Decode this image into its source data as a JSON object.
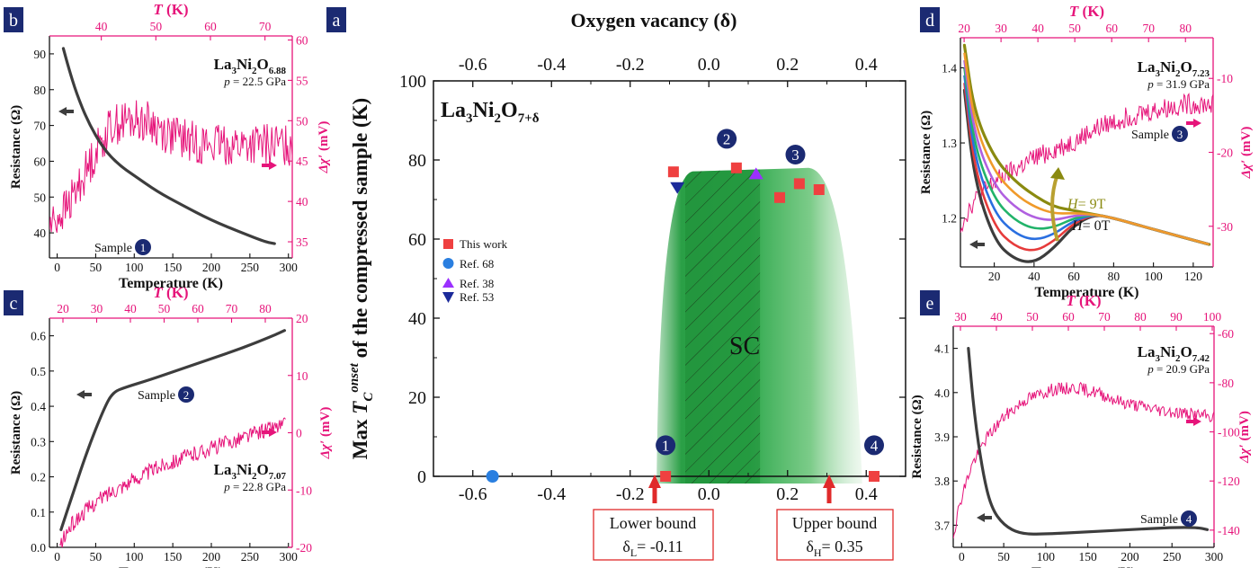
{
  "colors": {
    "pink": "#e6147a",
    "dark": "#3d3d3d",
    "navy": "#1b2a72",
    "red": "#ef4040",
    "blue": "#2a7fe0",
    "purple": "#9b30ff",
    "darkblue": "#1b2a9a",
    "green": "#1e9e3a",
    "olive": "#8a8a10",
    "boxred": "#e02a2a"
  },
  "panels": {
    "a": {
      "letter": "a",
      "top_label": "Oxygen vacancy (δ)",
      "y_label_pre": "Max ",
      "y_label_T": "T",
      "y_label_sub": "C",
      "y_label_sup": "onset",
      "y_label_post": " of the compressed sample (K)",
      "compound_base": "La",
      "compound_n1": "3",
      "compound_mid": "Ni",
      "compound_n2": "2",
      "compound_o": "O",
      "compound_n3": "7+δ",
      "sc_label": "SC",
      "lower_bound_title": "Lower bound",
      "lower_bound_sym": "δ",
      "lower_bound_sub": "L",
      "lower_bound_val": "= -0.11",
      "upper_bound_title": "Upper bound",
      "upper_bound_sym": "δ",
      "upper_bound_sub": "H",
      "upper_bound_val": "= 0.35",
      "legend": [
        "This work",
        "Ref. 68",
        "Ref. 38",
        "Ref. 53"
      ],
      "markers": {
        "n1": "1",
        "n2": "2",
        "n3": "3",
        "n4": "4"
      }
    },
    "b": {
      "letter": "b",
      "top_T": "T",
      "top_unit": " (K)",
      "y_label": "Resistance (Ω)",
      "y2_label_pre": "Δχ′",
      "y2_label_post": " (mV)",
      "x_label": "Temperature (K)",
      "compound_a": "La",
      "compound_n1": "3",
      "compound_b": "Ni",
      "compound_n2": "2",
      "compound_c": "O",
      "compound_n3": "6.88",
      "pressure_p": "p",
      "pressure_val": " = 22.5 GPa",
      "sample_label": "Sample",
      "sample_num": "1"
    },
    "c": {
      "letter": "c",
      "top_T": "T",
      "top_unit": " (K)",
      "y_label": "Resistance (Ω)",
      "y2_label_pre": "Δχ′",
      "y2_label_post": " (mV)",
      "x_label": "Temperature (K)",
      "compound_a": "La",
      "compound_n1": "3",
      "compound_b": "Ni",
      "compound_n2": "2",
      "compound_c": "O",
      "compound_n3": "7.07",
      "pressure_p": "p",
      "pressure_val": " = 22.8 GPa",
      "sample_label": "Sample",
      "sample_num": "2"
    },
    "d": {
      "letter": "d",
      "top_T": "T",
      "top_unit": " (K)",
      "y_label": "Resistance (Ω)",
      "y2_label_pre": "Δχ′",
      "y2_label_post": " (mV)",
      "x_label": "Temperature (K)",
      "compound_a": "La",
      "compound_n1": "3",
      "compound_b": "Ni",
      "compound_n2": "2",
      "compound_c": "O",
      "compound_n3": "7.23",
      "pressure_p": "p",
      "pressure_val": " = 31.9 GPa",
      "sample_label": "Sample",
      "sample_num": "3",
      "h9_pre": "H",
      "h9_post": "= 9T",
      "h0_pre": "H",
      "h0_post": "= 0T"
    },
    "e": {
      "letter": "e",
      "top_T": "T",
      "top_unit": " (K)",
      "y_label": "Resistance (Ω)",
      "y2_label_pre": "Δχ′",
      "y2_label_post": " (mV)",
      "x_label": "Temperature (K)",
      "compound_a": "La",
      "compound_n1": "3",
      "compound_b": "Ni",
      "compound_n2": "2",
      "compound_c": "O",
      "compound_n3": "7.42",
      "pressure_p": "p",
      "pressure_val": " = 20.9 GPa",
      "sample_label": "Sample",
      "sample_num": "4"
    }
  },
  "chart_data": [
    {
      "panel": "a",
      "type": "scatter",
      "xlim": [
        -0.7,
        0.5
      ],
      "ylim": [
        0,
        100
      ],
      "xticks": [
        "-0.6",
        "-0.4",
        "-0.2",
        "0.0",
        "0.2",
        "0.4"
      ],
      "top_xticks": [
        "-0.6",
        "-0.4",
        "-0.2",
        "0.0",
        "0.2",
        "0.4"
      ],
      "yticks": [
        "0",
        "20",
        "40",
        "60",
        "80",
        "100"
      ],
      "xtick_values": [
        -0.6,
        -0.4,
        -0.2,
        0.0,
        0.2,
        0.4
      ],
      "ytick_values": [
        0,
        20,
        40,
        60,
        80,
        100
      ],
      "series": [
        {
          "name": "This work",
          "marker": "square",
          "x": [
            -0.09,
            0.07,
            0.18,
            0.23,
            0.28,
            -0.11,
            0.42
          ],
          "y": [
            77,
            78,
            70.5,
            74,
            72.5,
            0,
            0
          ]
        },
        {
          "name": "Ref. 68",
          "marker": "circle",
          "x": [
            -0.55
          ],
          "y": [
            0
          ]
        },
        {
          "name": "Ref. 38",
          "marker": "triangle-up",
          "x": [
            0.12
          ],
          "y": [
            76.5
          ]
        },
        {
          "name": "Ref. 53",
          "marker": "triangle-down",
          "x": [
            -0.08
          ],
          "y": [
            73
          ]
        }
      ],
      "numbered_markers": [
        {
          "label": "1",
          "x": -0.11,
          "y": 6.5
        },
        {
          "label": "2",
          "x": 0.05,
          "y": 84
        },
        {
          "label": "3",
          "x": 0.22,
          "y": 80
        },
        {
          "label": "4",
          "x": 0.42,
          "y": 6.5
        }
      ],
      "sc_dome": {
        "lower_bound": -0.11,
        "upper_bound": 0.35,
        "hatched_range": [
          -0.06,
          0.13
        ],
        "max": 78
      }
    },
    {
      "panel": "b",
      "type": "line",
      "xlim": [
        -10,
        305
      ],
      "ylim": [
        33,
        95
      ],
      "xticks": [
        0,
        50,
        100,
        150,
        200,
        250,
        300
      ],
      "yticks": [
        40,
        50,
        60,
        70,
        80,
        90
      ],
      "top_xticks": [
        40,
        50,
        60,
        70
      ],
      "top_xlim": [
        30.5,
        75
      ],
      "y2ticks": [
        35,
        40,
        45,
        50,
        55,
        60
      ],
      "y2lim": [
        33,
        60.5
      ],
      "series": [
        {
          "name": "Resistance",
          "axis": "left",
          "x": [
            8,
            15,
            25,
            40,
            60,
            80,
            100,
            130,
            160,
            200,
            240,
            270,
            282
          ],
          "y": [
            91.5,
            86,
            79,
            71,
            63.5,
            59,
            56,
            51.5,
            48,
            43.5,
            40,
            37.5,
            37
          ]
        },
        {
          "name": "Δχ′",
          "axis": "right",
          "x": [
            30.5,
            34,
            37,
            40,
            42,
            45,
            48,
            52,
            56,
            60,
            65,
            70,
            75
          ],
          "y": [
            37,
            39.5,
            43.5,
            47.5,
            49.5,
            50,
            50,
            48.5,
            47.5,
            47,
            47,
            47,
            47
          ]
        }
      ]
    },
    {
      "panel": "c",
      "type": "line",
      "xlim": [
        -10,
        305
      ],
      "ylim": [
        0,
        0.65
      ],
      "xticks": [
        0,
        50,
        100,
        150,
        200,
        250,
        300
      ],
      "yticks": [
        0.0,
        0.1,
        0.2,
        0.3,
        0.4,
        0.5,
        0.6
      ],
      "top_xticks": [
        20,
        30,
        40,
        50,
        60,
        70,
        80
      ],
      "top_xlim": [
        16,
        88
      ],
      "y2ticks": [
        -20,
        -10,
        0,
        10,
        20
      ],
      "y2lim": [
        -20,
        20
      ],
      "series": [
        {
          "name": "Resistance",
          "axis": "left",
          "x": [
            5,
            20,
            40,
            60,
            72,
            90,
            120,
            160,
            200,
            240,
            280,
            295
          ],
          "y": [
            0.05,
            0.15,
            0.28,
            0.39,
            0.44,
            0.455,
            0.475,
            0.505,
            0.535,
            0.565,
            0.6,
            0.615
          ]
        },
        {
          "name": "Δχ′",
          "axis": "right",
          "x": [
            19,
            22,
            26,
            30,
            35,
            40,
            45,
            50,
            55,
            60,
            65,
            70,
            75,
            80,
            86
          ],
          "y": [
            -20,
            -16.5,
            -14,
            -12,
            -10,
            -8.5,
            -7,
            -5.5,
            -4.5,
            -3.5,
            -2.5,
            -1.5,
            -0.5,
            0.5,
            1.5
          ]
        }
      ]
    },
    {
      "panel": "d",
      "type": "line",
      "xlim": [
        3,
        130
      ],
      "ylim": [
        1.135,
        1.44
      ],
      "xticks": [
        20,
        40,
        60,
        80,
        100,
        120
      ],
      "yticks": [
        1.2,
        1.3,
        1.4
      ],
      "top_xticks": [
        20,
        30,
        40,
        50,
        60,
        70,
        80
      ],
      "top_xlim": [
        19,
        87.5
      ],
      "y2ticks": [
        -30,
        -20,
        -10
      ],
      "y2lim": [
        -35.5,
        -4.5
      ],
      "series": [
        {
          "name": "H=0T",
          "axis": "left",
          "x": [
            5,
            10,
            20,
            30,
            40,
            50,
            60,
            70,
            80,
            100,
            128
          ],
          "y": [
            1.37,
            1.25,
            1.17,
            1.145,
            1.14,
            1.16,
            1.19,
            1.205,
            1.2,
            1.185,
            1.165
          ]
        },
        {
          "name": "H=9T",
          "axis": "left",
          "x": [
            5,
            10,
            20,
            30,
            40,
            50,
            60,
            70,
            80,
            100,
            128
          ],
          "y": [
            1.43,
            1.34,
            1.28,
            1.25,
            1.23,
            1.215,
            1.21,
            1.205,
            1.2,
            1.185,
            1.165
          ]
        },
        {
          "name": "Δχ′",
          "axis": "right",
          "x": [
            19,
            22,
            26,
            30,
            35,
            40,
            45,
            50,
            55,
            60,
            65,
            70,
            75,
            80,
            87.5
          ],
          "y": [
            -30,
            -27,
            -25,
            -23.5,
            -22,
            -20.5,
            -19.5,
            -18.5,
            -17,
            -16,
            -15,
            -14.5,
            -14,
            -13.5,
            -13.5
          ]
        }
      ]
    },
    {
      "panel": "e",
      "type": "line",
      "xlim": [
        -10,
        300
      ],
      "ylim": [
        3.65,
        4.15
      ],
      "xticks": [
        0,
        50,
        100,
        150,
        200,
        250,
        300
      ],
      "yticks": [
        3.7,
        3.8,
        3.9,
        4.0,
        4.1
      ],
      "top_xticks": [
        30,
        40,
        50,
        60,
        70,
        80,
        90,
        100
      ],
      "top_xlim": [
        28,
        100.5
      ],
      "y2ticks": [
        -140,
        -120,
        -100,
        -80,
        -60
      ],
      "y2lim": [
        -147,
        -57
      ],
      "series": [
        {
          "name": "Resistance",
          "axis": "left",
          "x": [
            8,
            15,
            25,
            35,
            50,
            70,
            100,
            150,
            200,
            250,
            280,
            292
          ],
          "y": [
            4.1,
            3.95,
            3.82,
            3.74,
            3.7,
            3.68,
            3.68,
            3.685,
            3.69,
            3.695,
            3.695,
            3.69
          ]
        },
        {
          "name": "Δχ′",
          "axis": "right",
          "x": [
            28,
            30,
            33,
            37,
            42,
            48,
            55,
            62,
            68,
            75,
            85,
            95,
            100.5
          ],
          "y": [
            -142,
            -128,
            -114,
            -103,
            -94,
            -87,
            -83,
            -82,
            -84,
            -88,
            -91,
            -93,
            -94
          ]
        }
      ]
    }
  ]
}
